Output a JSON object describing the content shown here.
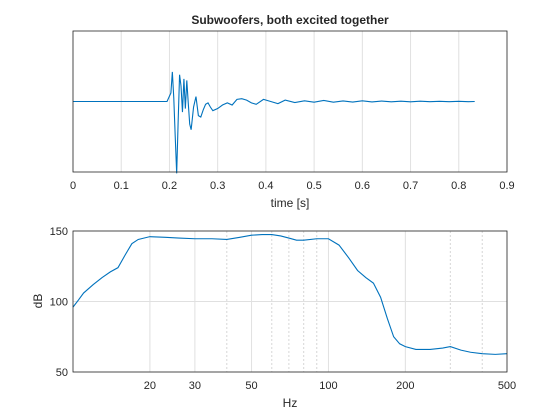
{
  "chart_data": [
    {
      "type": "line",
      "title": "Subwoofers, both excited together",
      "xlabel": "time [s]",
      "ylabel": "",
      "xlim": [
        0,
        0.9
      ],
      "ylim": [
        -1,
        1
      ],
      "xticks": [
        "0",
        "0.1",
        "0.2",
        "0.3",
        "0.4",
        "0.5",
        "0.6",
        "0.7",
        "0.8",
        "0.9"
      ],
      "grid": "on",
      "series": [
        {
          "color": "#0072BD",
          "x": [
            0,
            0.195,
            0.203,
            0.206,
            0.209,
            0.212,
            0.215,
            0.218,
            0.221,
            0.224,
            0.227,
            0.23,
            0.233,
            0.236,
            0.239,
            0.242,
            0.245,
            0.25,
            0.255,
            0.26,
            0.265,
            0.27,
            0.275,
            0.28,
            0.285,
            0.29,
            0.3,
            0.31,
            0.32,
            0.33,
            0.34,
            0.35,
            0.36,
            0.37,
            0.38,
            0.395,
            0.41,
            0.425,
            0.44,
            0.46,
            0.48,
            0.5,
            0.52,
            0.54,
            0.56,
            0.58,
            0.6,
            0.62,
            0.64,
            0.66,
            0.68,
            0.7,
            0.72,
            0.74,
            0.76,
            0.78,
            0.8,
            0.82,
            0.833
          ],
          "y": [
            0,
            0,
            0.12,
            0.42,
            0.05,
            -0.5,
            -1.02,
            -0.3,
            0.38,
            0.22,
            -0.15,
            0.32,
            -0.1,
            0.3,
            -0.02,
            -0.32,
            -0.4,
            -0.08,
            0.07,
            -0.2,
            -0.22,
            -0.12,
            -0.04,
            -0.02,
            -0.08,
            -0.13,
            -0.1,
            -0.05,
            -0.02,
            -0.05,
            0.03,
            0.04,
            0.02,
            -0.02,
            -0.04,
            0.03,
            0.0,
            -0.03,
            0.02,
            -0.015,
            0.01,
            -0.01,
            0.015,
            -0.01,
            0.008,
            -0.008,
            0.01,
            -0.006,
            0.006,
            -0.005,
            0.005,
            -0.004,
            0.004,
            -0.003,
            0.003,
            -0.003,
            0.002,
            -0.002,
            0
          ]
        }
      ]
    },
    {
      "type": "line",
      "title": "",
      "xlabel": "Hz",
      "ylabel": "dB",
      "xscale": "log",
      "xlim": [
        10,
        500
      ],
      "ylim": [
        50,
        150
      ],
      "xticks": [
        20,
        30,
        50,
        100,
        200,
        500
      ],
      "yticks": [
        50,
        100,
        150
      ],
      "grid": "on",
      "series": [
        {
          "color": "#0072BD",
          "x": [
            10,
            10.5,
            11,
            12,
            13,
            14,
            15,
            16,
            17,
            18,
            20,
            23,
            26,
            30,
            35,
            40,
            45,
            50,
            55,
            60,
            65,
            70,
            75,
            80,
            90,
            100,
            110,
            120,
            130,
            140,
            150,
            160,
            170,
            180,
            190,
            200,
            220,
            250,
            280,
            300,
            330,
            360,
            400,
            450,
            500
          ],
          "y": [
            96,
            101,
            106,
            112,
            117,
            121,
            124,
            133,
            141,
            144,
            146,
            145.5,
            145,
            144.5,
            144.5,
            144,
            145.5,
            147,
            147.5,
            147.5,
            146.5,
            145,
            143.5,
            143.5,
            144.5,
            144.5,
            140,
            131,
            122,
            117,
            113,
            103,
            88,
            75,
            70,
            68,
            66,
            66,
            67,
            68,
            65.5,
            64,
            63,
            62.5,
            63
          ]
        }
      ]
    }
  ]
}
